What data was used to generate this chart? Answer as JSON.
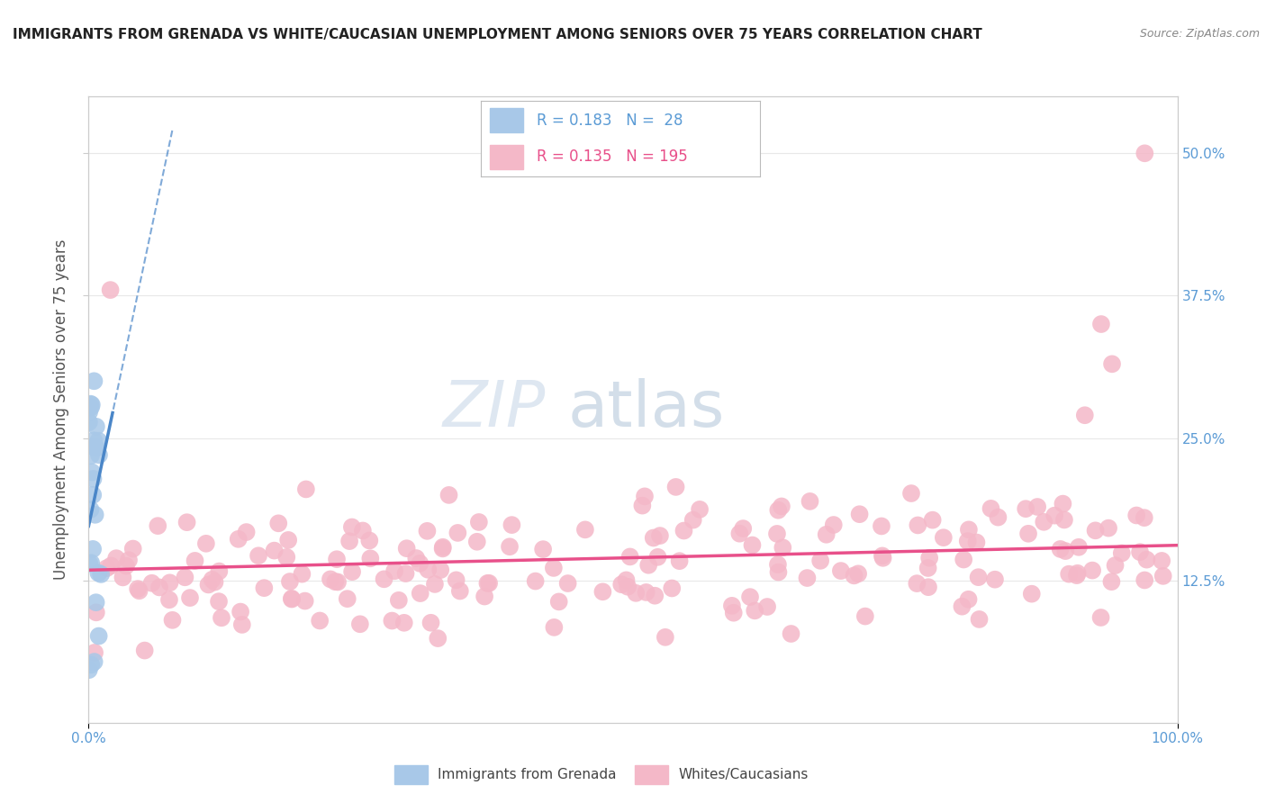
{
  "title": "IMMIGRANTS FROM GRENADA VS WHITE/CAUCASIAN UNEMPLOYMENT AMONG SENIORS OVER 75 YEARS CORRELATION CHART",
  "source": "Source: ZipAtlas.com",
  "ylabel_label": "Unemployment Among Seniors over 75 years",
  "legend_label1": "Immigrants from Grenada",
  "legend_label2": "Whites/Caucasians",
  "R1": 0.183,
  "N1": 28,
  "R2": 0.135,
  "N2": 195,
  "color_blue": "#a8c8e8",
  "color_pink": "#f4b8c8",
  "color_blue_line": "#4a86c8",
  "color_pink_line": "#e8508a",
  "watermark_zip": "ZIP",
  "watermark_atlas": "atlas",
  "xlim": [
    0.0,
    1.0
  ],
  "ylim": [
    0.0,
    0.55
  ],
  "yticks": [
    0.125,
    0.25,
    0.375,
    0.5
  ],
  "xticks": [
    0.0,
    1.0
  ],
  "seed": 42
}
